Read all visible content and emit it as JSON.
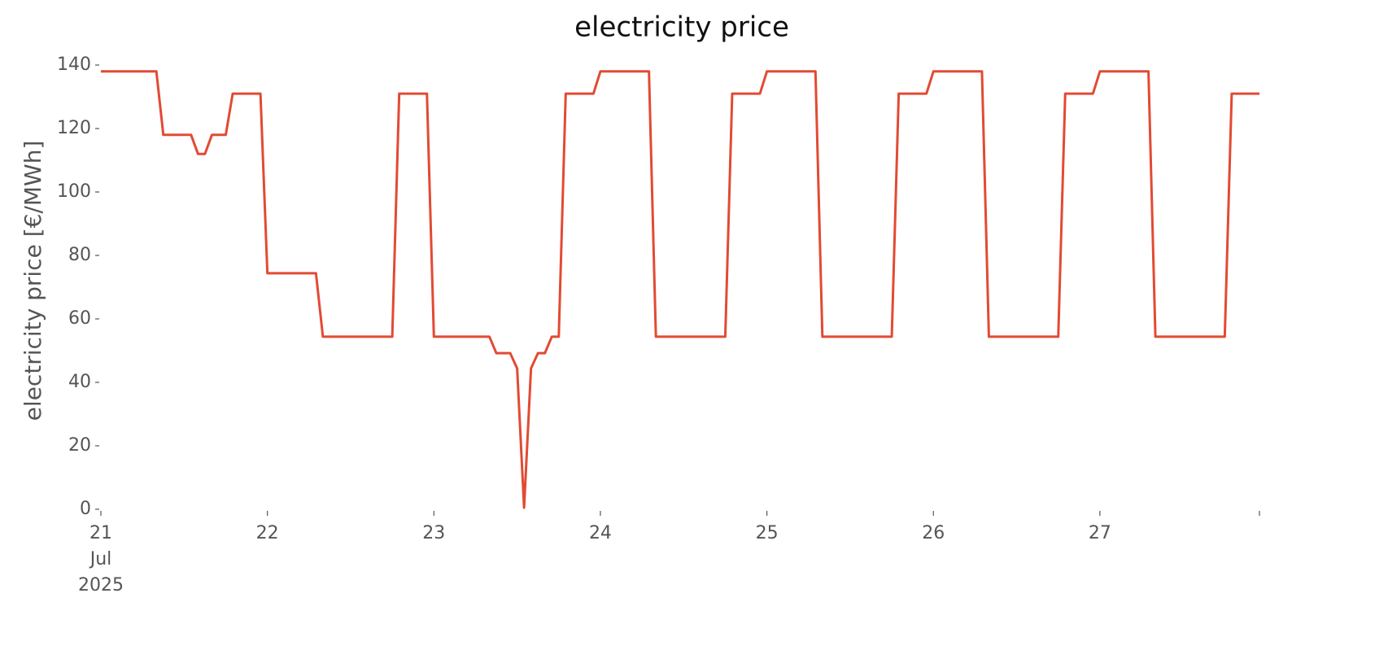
{
  "chart_data": {
    "type": "line",
    "title": "electricity price",
    "ylabel": "electricity price [€/MWh]",
    "series": [
      {
        "name": "electricity price",
        "color": "#e24a33",
        "x": [
          21.0,
          21.3333,
          21.375,
          21.5417,
          21.5833,
          21.625,
          21.6667,
          21.75,
          21.7917,
          21.9583,
          22.0,
          22.2917,
          22.3333,
          22.75,
          22.7917,
          22.9583,
          23.0,
          23.3333,
          23.375,
          23.4583,
          23.5,
          23.5417,
          23.5833,
          23.625,
          23.6667,
          23.7083,
          23.75,
          23.7917,
          23.9583,
          24.0,
          24.2917,
          24.3333,
          24.75,
          24.7917,
          24.9583,
          25.0,
          25.2917,
          25.3333,
          25.75,
          25.7917,
          25.9583,
          26.0,
          26.2917,
          26.3333,
          26.75,
          26.7917,
          26.9583,
          27.0,
          27.2917,
          27.3333,
          27.75,
          27.7917,
          27.9583
        ],
        "values": [
          138,
          138,
          118,
          118,
          112,
          112,
          118,
          118,
          131,
          131,
          74.4,
          74.4,
          54.4,
          54.4,
          131,
          131,
          54.4,
          54.4,
          49.2,
          49.2,
          44.4,
          0.5,
          44.4,
          49.2,
          49.2,
          54.4,
          54.4,
          131,
          131,
          138,
          138,
          54.4,
          54.4,
          131,
          131,
          138,
          138,
          54.4,
          54.4,
          131,
          131,
          138,
          138,
          54.4,
          54.4,
          131,
          131,
          138,
          138,
          54.4,
          54.4,
          131,
          131
        ]
      }
    ],
    "xlim": [
      21,
      27.9583
    ],
    "xticks": [
      {
        "value": 21,
        "label": "21\nJul\n2025"
      },
      22,
      23,
      24,
      25,
      26,
      27
    ],
    "ylim": [
      0,
      140
    ],
    "yticks": [
      0,
      20,
      40,
      60,
      80,
      100,
      120,
      140
    ],
    "grid": false
  }
}
